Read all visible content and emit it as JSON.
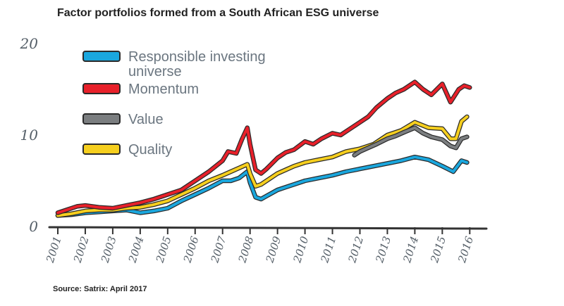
{
  "chart_data": {
    "type": "line",
    "title": "Factor portfolios formed from a South African ESG universe",
    "source": "Source: Satrix: April 2017",
    "xlabel": "",
    "ylabel": "",
    "ylim": [
      0,
      20
    ],
    "yticks": [
      "0",
      "10",
      "20"
    ],
    "xlim": [
      2001,
      2016.3
    ],
    "xticks": [
      "2001",
      "2002",
      "2003",
      "2004",
      "2005",
      "2006",
      "2007",
      "2008",
      "2009",
      "2010",
      "2011",
      "2012",
      "2013",
      "2014",
      "2015",
      "2016"
    ],
    "grid": false,
    "legend_position": "top-left",
    "series": [
      {
        "name": "Responsible investing universe",
        "color": "#1aa7de",
        "x": [
          2001.0,
          2001.5,
          2002.0,
          2002.5,
          2003.0,
          2003.5,
          2004.0,
          2004.5,
          2005.0,
          2005.5,
          2006.0,
          2006.5,
          2007.0,
          2007.3,
          2007.6,
          2007.9,
          2008.0,
          2008.2,
          2008.4,
          2008.7,
          2009.0,
          2009.3,
          2009.6,
          2010.0,
          2010.5,
          2011.0,
          2011.5,
          2012.0,
          2012.5,
          2013.0,
          2013.5,
          2014.0,
          2014.5,
          2015.0,
          2015.4,
          2015.7,
          2015.9
        ],
        "values": [
          1.2,
          1.3,
          1.5,
          1.6,
          1.7,
          1.8,
          1.5,
          1.7,
          2.0,
          2.8,
          3.5,
          4.2,
          5.0,
          5.0,
          5.3,
          6.0,
          4.8,
          3.2,
          3.0,
          3.5,
          4.0,
          4.3,
          4.6,
          5.0,
          5.3,
          5.6,
          6.0,
          6.3,
          6.6,
          6.9,
          7.2,
          7.6,
          7.3,
          6.6,
          6.0,
          7.2,
          7.0
        ]
      },
      {
        "name": "Momentum",
        "color": "#e8202a",
        "x": [
          2001.0,
          2001.3,
          2001.7,
          2002.0,
          2002.5,
          2003.0,
          2003.5,
          2004.0,
          2004.5,
          2005.0,
          2005.5,
          2006.0,
          2006.5,
          2007.0,
          2007.2,
          2007.5,
          2007.7,
          2007.9,
          2008.0,
          2008.2,
          2008.4,
          2008.6,
          2009.0,
          2009.3,
          2009.6,
          2010.0,
          2010.3,
          2010.6,
          2011.0,
          2011.3,
          2011.6,
          2012.0,
          2012.3,
          2012.6,
          2013.0,
          2013.3,
          2013.6,
          2014.0,
          2014.3,
          2014.6,
          2015.0,
          2015.3,
          2015.6,
          2015.8,
          2016.0
        ],
        "values": [
          1.5,
          1.8,
          2.2,
          2.3,
          2.1,
          2.0,
          2.3,
          2.6,
          3.0,
          3.5,
          4.0,
          5.0,
          6.0,
          7.2,
          8.2,
          8.0,
          9.5,
          10.8,
          9.0,
          6.2,
          5.8,
          6.3,
          7.5,
          8.1,
          8.4,
          9.3,
          9.0,
          9.6,
          10.2,
          10.0,
          10.6,
          11.4,
          12.0,
          13.0,
          14.0,
          14.6,
          15.0,
          15.8,
          15.0,
          14.4,
          15.6,
          13.6,
          15.0,
          15.4,
          15.2
        ]
      },
      {
        "name": "Value",
        "color": "#7b7e80",
        "x": [
          2011.8,
          2012.0,
          2012.3,
          2012.6,
          2013.0,
          2013.3,
          2013.6,
          2014.0,
          2014.3,
          2014.6,
          2015.0,
          2015.3,
          2015.5,
          2015.7,
          2015.9
        ],
        "values": [
          7.8,
          8.2,
          8.6,
          9.0,
          9.6,
          9.9,
          10.3,
          10.8,
          10.2,
          9.8,
          9.5,
          8.8,
          8.6,
          9.6,
          9.8
        ]
      },
      {
        "name": "Quality",
        "color": "#f6cf1e",
        "x": [
          2001.0,
          2001.5,
          2002.0,
          2002.5,
          2003.0,
          2003.5,
          2004.0,
          2004.5,
          2005.0,
          2005.5,
          2006.0,
          2006.5,
          2007.0,
          2007.3,
          2007.6,
          2007.9,
          2008.0,
          2008.2,
          2008.4,
          2008.7,
          2009.0,
          2009.3,
          2009.6,
          2010.0,
          2010.5,
          2011.0,
          2011.5,
          2012.0,
          2012.5,
          2013.0,
          2013.5,
          2014.0,
          2014.5,
          2015.0,
          2015.3,
          2015.5,
          2015.7,
          2015.9
        ],
        "values": [
          1.2,
          1.4,
          1.7,
          1.8,
          1.8,
          2.0,
          2.1,
          2.4,
          2.8,
          3.5,
          4.2,
          5.0,
          5.6,
          6.0,
          6.4,
          6.8,
          5.8,
          4.4,
          4.6,
          5.2,
          5.8,
          6.2,
          6.6,
          7.0,
          7.3,
          7.6,
          8.2,
          8.5,
          9.0,
          10.0,
          10.5,
          11.4,
          10.8,
          10.7,
          9.6,
          9.6,
          11.5,
          12.0
        ]
      }
    ]
  }
}
